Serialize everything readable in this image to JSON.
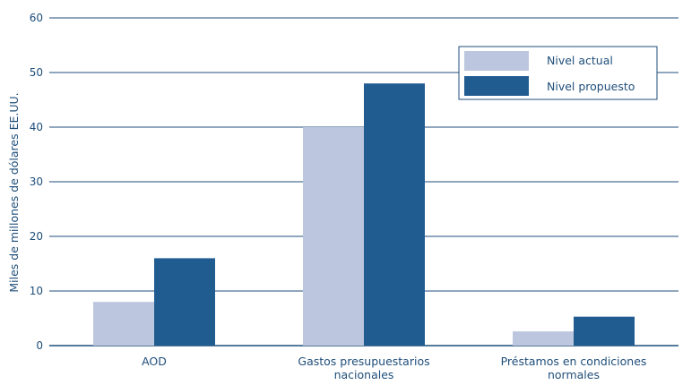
{
  "chart_data": {
    "type": "bar",
    "title": "",
    "xlabel": "",
    "ylabel": "Miles de millones de dólares EE.UU.",
    "ylim": [
      0,
      60
    ],
    "yticks": [
      0,
      10,
      20,
      30,
      40,
      50,
      60
    ],
    "grid": true,
    "legend_position": "top-right",
    "categories": [
      [
        "AOD"
      ],
      [
        "Gastos presupuestarios",
        "nacionales"
      ],
      [
        "Préstamos en condiciones",
        "normales"
      ]
    ],
    "series": [
      {
        "name": "Nivel actual",
        "color": "#bcc6de",
        "values": [
          8,
          40,
          2.6
        ]
      },
      {
        "name": "Nivel propuesto",
        "color": "#215c91",
        "values": [
          16,
          48,
          5.3
        ]
      }
    ],
    "colors": {
      "axis": "#1f4e7a",
      "grid": "#1f4e7a",
      "text": "#1f4e7a"
    }
  }
}
